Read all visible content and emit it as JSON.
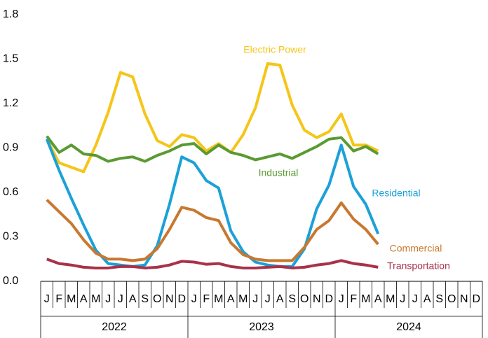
{
  "chart_data": {
    "type": "line",
    "categories": [
      "J",
      "F",
      "M",
      "A",
      "M",
      "J",
      "J",
      "A",
      "S",
      "O",
      "N",
      "D",
      "J",
      "F",
      "M",
      "A",
      "M",
      "J",
      "J",
      "A",
      "S",
      "O",
      "N",
      "D",
      "J",
      "F",
      "M",
      "A",
      "M",
      "J",
      "J",
      "A",
      "S",
      "O",
      "N",
      "D"
    ],
    "year_groups": [
      "2022",
      "2023",
      "2024"
    ],
    "ylim": [
      0,
      1.8
    ],
    "yticks": [
      {
        "value": 0,
        "label": "0.0"
      },
      0.3,
      0.6,
      0.9,
      1.2,
      1.5,
      1.8
    ],
    "grid": false,
    "series": [
      {
        "name": "Electric Power",
        "color": "#f5c518",
        "values": [
          0.96,
          0.8,
          0.77,
          0.74,
          0.92,
          1.14,
          1.41,
          1.38,
          1.13,
          0.95,
          0.91,
          0.99,
          0.97,
          0.88,
          0.93,
          0.87,
          0.99,
          1.17,
          1.47,
          1.46,
          1.19,
          1.02,
          0.97,
          1.01,
          1.13,
          0.92,
          0.92,
          0.88,
          null,
          null,
          null,
          null,
          null,
          null,
          null,
          null
        ]
      },
      {
        "name": "Industrial",
        "color": "#5a9a32",
        "values": [
          0.98,
          0.87,
          0.92,
          0.86,
          0.85,
          0.81,
          0.83,
          0.84,
          0.81,
          0.85,
          0.88,
          0.92,
          0.93,
          0.86,
          0.92,
          0.87,
          0.85,
          0.82,
          0.84,
          0.86,
          0.83,
          0.87,
          0.91,
          0.96,
          0.97,
          0.88,
          0.91,
          0.86,
          null,
          null,
          null,
          null,
          null,
          null,
          null,
          null
        ]
      },
      {
        "name": "Residential",
        "color": "#1ba1d8",
        "values": [
          0.96,
          0.75,
          0.56,
          0.38,
          0.21,
          0.12,
          0.11,
          0.1,
          0.11,
          0.24,
          0.52,
          0.84,
          0.8,
          0.68,
          0.63,
          0.34,
          0.2,
          0.13,
          0.11,
          0.1,
          0.1,
          0.22,
          0.49,
          0.65,
          0.92,
          0.64,
          0.52,
          0.32,
          null,
          null,
          null,
          null,
          null,
          null,
          null,
          null
        ]
      },
      {
        "name": "Commercial",
        "color": "#c8782f",
        "values": [
          0.55,
          0.47,
          0.39,
          0.28,
          0.19,
          0.15,
          0.15,
          0.14,
          0.15,
          0.22,
          0.35,
          0.5,
          0.48,
          0.43,
          0.41,
          0.26,
          0.18,
          0.15,
          0.14,
          0.14,
          0.14,
          0.23,
          0.35,
          0.41,
          0.53,
          0.42,
          0.35,
          0.25,
          null,
          null,
          null,
          null,
          null,
          null,
          null,
          null
        ]
      },
      {
        "name": "Transportation",
        "color": "#a8324a",
        "values": [
          0.15,
          0.12,
          0.11,
          0.095,
          0.09,
          0.09,
          0.1,
          0.1,
          0.09,
          0.095,
          0.11,
          0.135,
          0.13,
          0.115,
          0.12,
          0.1,
          0.09,
          0.09,
          0.095,
          0.1,
          0.09,
          0.095,
          0.11,
          0.12,
          0.14,
          0.12,
          0.11,
          0.095,
          null,
          null,
          null,
          null,
          null,
          null,
          null,
          null
        ]
      }
    ]
  }
}
